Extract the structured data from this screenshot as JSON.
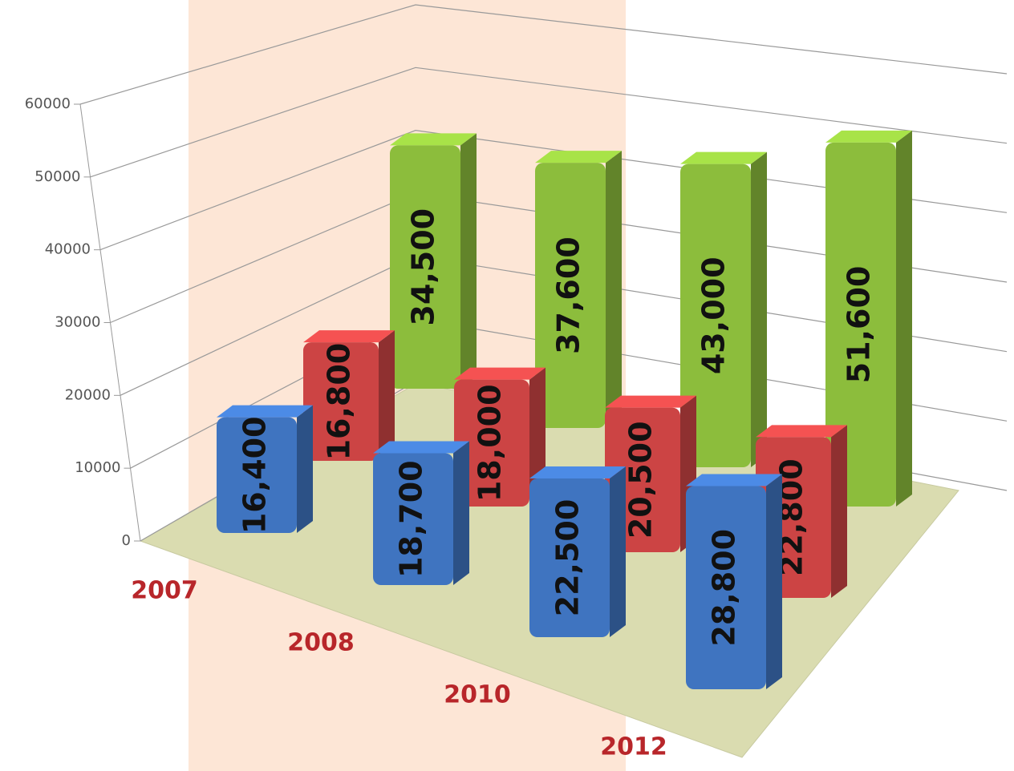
{
  "chart_data": {
    "type": "bar3d",
    "categories": [
      "2007",
      "2008",
      "2010",
      "2012"
    ],
    "series": [
      {
        "color": "#3f74c0",
        "values": [
          16400,
          18700,
          22500,
          28800
        ],
        "value_labels": [
          "16,400",
          "18,700",
          "22,500",
          "28,800"
        ]
      },
      {
        "color": "#cc4444",
        "values": [
          16800,
          18000,
          20500,
          22800
        ],
        "value_labels": [
          "16,800",
          "18,000",
          "20,500",
          "22,800"
        ]
      },
      {
        "color": "#8cbd3c",
        "values": [
          34500,
          37600,
          43000,
          51600
        ],
        "value_labels": [
          "34,500",
          "37,600",
          "43,000",
          "51,600"
        ]
      }
    ],
    "ylim": [
      0,
      60000
    ],
    "yticks": [
      0,
      10000,
      20000,
      30000,
      40000,
      50000,
      60000
    ],
    "grid": true
  }
}
